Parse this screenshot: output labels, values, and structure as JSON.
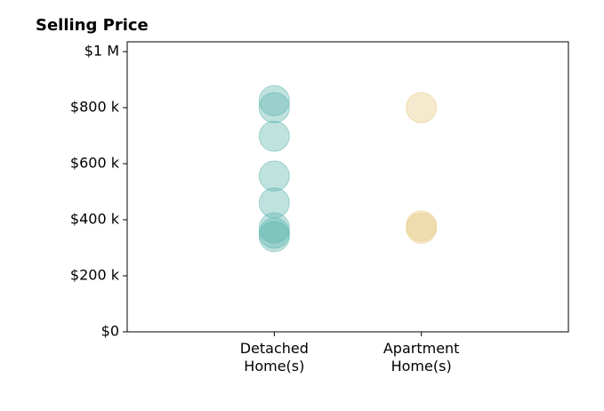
{
  "chart_data": {
    "type": "strip",
    "title": "Selling Price",
    "categories": [
      "Detached\nHome(s)",
      "Apartment\nHome(s)"
    ],
    "colors": [
      "#5ab4ac",
      "#e6c77f"
    ],
    "values": [
      [
        825000,
        800000,
        698000,
        556000,
        460000,
        371000,
        352000,
        340000
      ],
      [
        800000,
        378000,
        370000
      ]
    ],
    "ylim": [
      0,
      1035000
    ],
    "yticks": [
      {
        "value": 0,
        "label": "$0"
      },
      {
        "value": 200000,
        "label": "$200 k"
      },
      {
        "value": 400000,
        "label": "$400 k"
      },
      {
        "value": 600000,
        "label": "$600 k"
      },
      {
        "value": 800000,
        "label": "$800 k"
      },
      {
        "value": 1000000,
        "label": "$1 M"
      }
    ]
  }
}
